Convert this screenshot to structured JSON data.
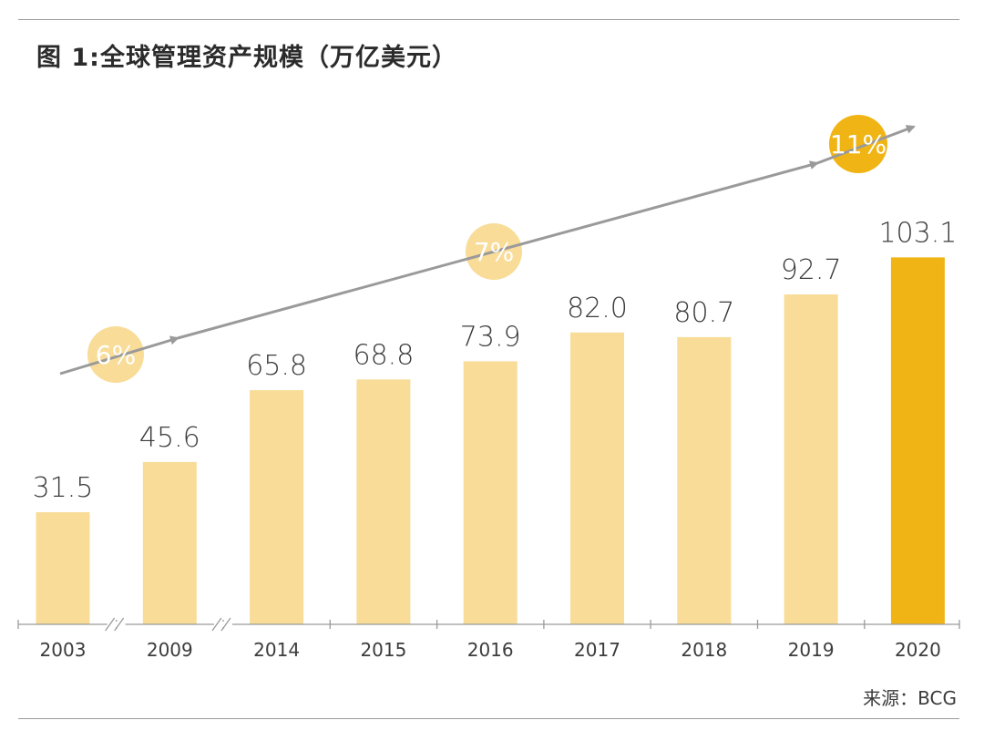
{
  "title": "图 1:全球管理资产规模（万亿美元）",
  "source": "来源：BCG",
  "chart_data": {
    "type": "bar",
    "title": "图 1:全球管理资产规模（万亿美元）",
    "xlabel": "",
    "ylabel": "",
    "categories": [
      "2003",
      "2009",
      "2014",
      "2015",
      "2016",
      "2017",
      "2018",
      "2019",
      "2020"
    ],
    "values": [
      31.5,
      45.6,
      65.8,
      68.8,
      73.9,
      82.0,
      80.7,
      92.7,
      103.1
    ],
    "value_labels": [
      "31.5",
      "45.6",
      "65.8",
      "68.8",
      "73.9",
      "82.0",
      "80.7",
      "92.7",
      "103.1"
    ],
    "ylim": [
      0,
      110
    ],
    "grid": false,
    "axis_breaks_after": [
      "2003",
      "2009"
    ],
    "highlight_category": "2020",
    "colors": {
      "bar": "#f8dc98",
      "highlight": "#f0b515",
      "rate_circle": "#f8dc98",
      "rate_circle_highlight": "#f0b515",
      "arrow": "#9a9a9a",
      "axis": "#9a9a9a"
    },
    "growth_rates": [
      {
        "label": "6%"
      },
      {
        "label": "7%"
      },
      {
        "label": "11%",
        "highlight": true
      }
    ]
  }
}
